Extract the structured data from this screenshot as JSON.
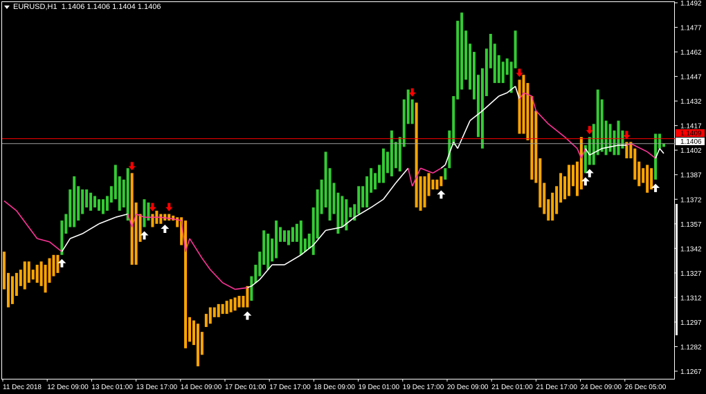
{
  "header": {
    "symbol": "EURUSD,H1",
    "ohlc": "1.1406 1.1406 1.1404 1.1406"
  },
  "colors": {
    "background": "#000000",
    "frame": "#ffffff",
    "bull_bar": "#33cc33",
    "bear_bar": "#ffa500",
    "line_up": "#ffffff",
    "line_down": "#ff3399",
    "sell_arrow": "#ff0000",
    "buy_arrow": "#ffffff",
    "bid_line": "#ff0000",
    "last_line": "#a0a0a0"
  },
  "chart_data": {
    "type": "bar",
    "symbol": "EURUSD",
    "timeframe": "H1",
    "ylim": [
      1.1262,
      1.1497
    ],
    "grid": false,
    "y_ticks": [
      "1.1492",
      "1.1477",
      "1.1462",
      "1.1447",
      "1.1432",
      "1.1417",
      "1.1402",
      "1.1387",
      "1.1372",
      "1.1357",
      "1.1342",
      "1.1327",
      "1.1312",
      "1.1297",
      "1.1282",
      "1.1267"
    ],
    "x_ticks": [
      "11 Dec 2018",
      "12 Dec 09:00",
      "13 Dec 01:00",
      "13 Dec 17:00",
      "14 Dec 09:00",
      "17 Dec 01:00",
      "17 Dec 17:00",
      "18 Dec 09:00",
      "19 Dec 01:00",
      "19 Dec 17:00",
      "20 Dec 09:00",
      "21 Dec 01:00",
      "21 Dec 17:00",
      "24 Dec 09:00",
      "26 Dec 05:00"
    ],
    "price_lines": [
      {
        "label": "1.1409",
        "value": 1.1409,
        "color": "#ff0000"
      },
      {
        "label": "1.1406",
        "value": 1.1406,
        "color": "#a0a0a0"
      }
    ],
    "bars": [
      [
        1.134,
        1.1317,
        "d"
      ],
      [
        1.1327,
        1.1306,
        "d"
      ],
      [
        1.1325,
        1.1308,
        "d"
      ],
      [
        1.1327,
        1.1313,
        "d"
      ],
      [
        1.1329,
        1.1319,
        "d"
      ],
      [
        1.1334,
        1.1317,
        "d"
      ],
      [
        1.1334,
        1.1321,
        "d"
      ],
      [
        1.1329,
        1.1323,
        "d"
      ],
      [
        1.1332,
        1.1321,
        "d"
      ],
      [
        1.1334,
        1.1319,
        "d"
      ],
      [
        1.1332,
        1.1315,
        "d"
      ],
      [
        1.1336,
        1.1321,
        "d"
      ],
      [
        1.1338,
        1.1325,
        "d"
      ],
      [
        1.1338,
        1.1327,
        "d"
      ],
      [
        1.1359,
        1.1338,
        "u"
      ],
      [
        1.1363,
        1.1351,
        "u"
      ],
      [
        1.1378,
        1.1355,
        "u"
      ],
      [
        1.1386,
        1.1355,
        "u"
      ],
      [
        1.138,
        1.1359,
        "u"
      ],
      [
        1.1378,
        1.1363,
        "u"
      ],
      [
        1.1378,
        1.1367,
        "u"
      ],
      [
        1.1376,
        1.1365,
        "u"
      ],
      [
        1.1374,
        1.1367,
        "u"
      ],
      [
        1.1372,
        1.1365,
        "u"
      ],
      [
        1.1372,
        1.1363,
        "u"
      ],
      [
        1.1374,
        1.1365,
        "u"
      ],
      [
        1.138,
        1.137,
        "u"
      ],
      [
        1.1393,
        1.1372,
        "u"
      ],
      [
        1.1386,
        1.1365,
        "u"
      ],
      [
        1.1384,
        1.1367,
        "u"
      ],
      [
        1.1391,
        1.1359,
        "u"
      ],
      [
        1.1388,
        1.1332,
        "d"
      ],
      [
        1.137,
        1.1332,
        "d"
      ],
      [
        1.1363,
        1.1346,
        "d"
      ],
      [
        1.1372,
        1.1355,
        "u"
      ],
      [
        1.137,
        1.1359,
        "u"
      ],
      [
        1.1363,
        1.1355,
        "d"
      ],
      [
        1.1365,
        1.1357,
        "d"
      ],
      [
        1.1363,
        1.1357,
        "d"
      ],
      [
        1.1363,
        1.1359,
        "d"
      ],
      [
        1.1363,
        1.1359,
        "d"
      ],
      [
        1.1362,
        1.1359,
        "d"
      ],
      [
        1.1361,
        1.1355,
        "d"
      ],
      [
        1.1361,
        1.1344,
        "d"
      ],
      [
        1.1359,
        1.1281,
        "d"
      ],
      [
        1.13,
        1.1285,
        "d"
      ],
      [
        1.1298,
        1.1283,
        "d"
      ],
      [
        1.1296,
        1.127,
        "d"
      ],
      [
        1.1291,
        1.1277,
        "d"
      ],
      [
        1.1302,
        1.1294,
        "d"
      ],
      [
        1.1306,
        1.1296,
        "d"
      ],
      [
        1.1306,
        1.13,
        "d"
      ],
      [
        1.1308,
        1.13,
        "d"
      ],
      [
        1.1308,
        1.1302,
        "d"
      ],
      [
        1.131,
        1.1302,
        "d"
      ],
      [
        1.1311,
        1.1303,
        "d"
      ],
      [
        1.1312,
        1.1304,
        "d"
      ],
      [
        1.1313,
        1.1306,
        "d"
      ],
      [
        1.1313,
        1.1306,
        "d"
      ],
      [
        1.1319,
        1.1306,
        "d"
      ],
      [
        1.1325,
        1.131,
        "u"
      ],
      [
        1.1332,
        1.1321,
        "u"
      ],
      [
        1.134,
        1.1325,
        "u"
      ],
      [
        1.1353,
        1.1332,
        "u"
      ],
      [
        1.1351,
        1.1329,
        "u"
      ],
      [
        1.1348,
        1.1334,
        "u"
      ],
      [
        1.1359,
        1.1336,
        "u"
      ],
      [
        1.1355,
        1.1346,
        "u"
      ],
      [
        1.1353,
        1.1346,
        "u"
      ],
      [
        1.1353,
        1.1344,
        "u"
      ],
      [
        1.1355,
        1.1346,
        "u"
      ],
      [
        1.1357,
        1.1346,
        "u"
      ],
      [
        1.1359,
        1.1338,
        "u"
      ],
      [
        1.1348,
        1.134,
        "u"
      ],
      [
        1.1351,
        1.1342,
        "u"
      ],
      [
        1.1367,
        1.1338,
        "u"
      ],
      [
        1.1378,
        1.1348,
        "u"
      ],
      [
        1.1384,
        1.1363,
        "u"
      ],
      [
        1.1401,
        1.1367,
        "u"
      ],
      [
        1.1391,
        1.1359,
        "u"
      ],
      [
        1.1382,
        1.1363,
        "u"
      ],
      [
        1.1376,
        1.1351,
        "u"
      ],
      [
        1.1374,
        1.1355,
        "u"
      ],
      [
        1.1372,
        1.1353,
        "u"
      ],
      [
        1.1367,
        1.1361,
        "u"
      ],
      [
        1.1369,
        1.1359,
        "u"
      ],
      [
        1.138,
        1.1363,
        "u"
      ],
      [
        1.138,
        1.1367,
        "u"
      ],
      [
        1.1386,
        1.1367,
        "u"
      ],
      [
        1.1391,
        1.1376,
        "u"
      ],
      [
        1.1388,
        1.1378,
        "u"
      ],
      [
        1.1393,
        1.1382,
        "u"
      ],
      [
        1.1403,
        1.1382,
        "u"
      ],
      [
        1.1401,
        1.1388,
        "u"
      ],
      [
        1.1414,
        1.1386,
        "u"
      ],
      [
        1.1407,
        1.1391,
        "u"
      ],
      [
        1.141,
        1.1389,
        "u"
      ],
      [
        1.1433,
        1.1404,
        "u"
      ],
      [
        1.1439,
        1.1418,
        "u"
      ],
      [
        1.1433,
        1.1418,
        "u"
      ],
      [
        1.1431,
        1.1367,
        "d"
      ],
      [
        1.1386,
        1.1365,
        "d"
      ],
      [
        1.1386,
        1.1367,
        "d"
      ],
      [
        1.1388,
        1.1374,
        "d"
      ],
      [
        1.1384,
        1.1378,
        "d"
      ],
      [
        1.1384,
        1.1378,
        "d"
      ],
      [
        1.1386,
        1.138,
        "d"
      ],
      [
        1.1391,
        1.1384,
        "u"
      ],
      [
        1.1414,
        1.1391,
        "u"
      ],
      [
        1.1435,
        1.1405,
        "u"
      ],
      [
        1.1481,
        1.1433,
        "u"
      ],
      [
        1.1486,
        1.1439,
        "u"
      ],
      [
        1.1475,
        1.1445,
        "u"
      ],
      [
        1.1467,
        1.1439,
        "u"
      ],
      [
        1.1462,
        1.1433,
        "u"
      ],
      [
        1.1448,
        1.141,
        "u"
      ],
      [
        1.1452,
        1.1403,
        "u"
      ],
      [
        1.1464,
        1.1435,
        "u"
      ],
      [
        1.1473,
        1.1452,
        "u"
      ],
      [
        1.1467,
        1.1443,
        "u"
      ],
      [
        1.146,
        1.1443,
        "u"
      ],
      [
        1.1456,
        1.1443,
        "u"
      ],
      [
        1.1458,
        1.1448,
        "u"
      ],
      [
        1.1456,
        1.1437,
        "u"
      ],
      [
        1.1475,
        1.1452,
        "u"
      ],
      [
        1.1445,
        1.1412,
        "d"
      ],
      [
        1.1448,
        1.1412,
        "d"
      ],
      [
        1.1443,
        1.1408,
        "d"
      ],
      [
        1.1435,
        1.1384,
        "d"
      ],
      [
        1.1426,
        1.1382,
        "d"
      ],
      [
        1.1397,
        1.1367,
        "d"
      ],
      [
        1.1382,
        1.1363,
        "d"
      ],
      [
        1.1372,
        1.1359,
        "d"
      ],
      [
        1.1376,
        1.1359,
        "d"
      ],
      [
        1.138,
        1.1363,
        "d"
      ],
      [
        1.1388,
        1.137,
        "d"
      ],
      [
        1.1386,
        1.1372,
        "d"
      ],
      [
        1.1393,
        1.1374,
        "d"
      ],
      [
        1.1393,
        1.138,
        "d"
      ],
      [
        1.1395,
        1.1374,
        "d"
      ],
      [
        1.141,
        1.1378,
        "d"
      ],
      [
        1.1405,
        1.1388,
        "u"
      ],
      [
        1.141,
        1.1393,
        "u"
      ],
      [
        1.1418,
        1.1393,
        "u"
      ],
      [
        1.1439,
        1.1399,
        "u"
      ],
      [
        1.1433,
        1.1401,
        "u"
      ],
      [
        1.142,
        1.1399,
        "u"
      ],
      [
        1.1418,
        1.1401,
        "u"
      ],
      [
        1.1414,
        1.1399,
        "u"
      ],
      [
        1.142,
        1.1399,
        "u"
      ],
      [
        1.1414,
        1.1403,
        "u"
      ],
      [
        1.1407,
        1.1397,
        "d"
      ],
      [
        1.1407,
        1.1397,
        "d"
      ],
      [
        1.1403,
        1.1384,
        "d"
      ],
      [
        1.1395,
        1.138,
        "d"
      ],
      [
        1.1391,
        1.1382,
        "d"
      ],
      [
        1.1393,
        1.1376,
        "d"
      ],
      [
        1.1391,
        1.1378,
        "d"
      ],
      [
        1.1412,
        1.1384,
        "u"
      ],
      [
        1.1412,
        1.1403,
        "u"
      ],
      [
        1.1406,
        1.1404,
        "u"
      ]
    ],
    "trend_line": [
      [
        0,
        1.1371,
        "d"
      ],
      [
        3,
        1.1365,
        "d"
      ],
      [
        8,
        1.1348,
        "d"
      ],
      [
        11,
        1.1346,
        "d"
      ],
      [
        14,
        1.134,
        "d"
      ],
      [
        14,
        1.134,
        "u"
      ],
      [
        16,
        1.1348,
        "u"
      ],
      [
        19,
        1.1351,
        "u"
      ],
      [
        23,
        1.1357,
        "u"
      ],
      [
        27,
        1.1361,
        "u"
      ],
      [
        30,
        1.1363,
        "u"
      ],
      [
        30,
        1.1363,
        "d"
      ],
      [
        31,
        1.1355,
        "d"
      ],
      [
        32,
        1.1363,
        "d"
      ],
      [
        34,
        1.1361,
        "d"
      ],
      [
        38,
        1.1361,
        "d"
      ],
      [
        41,
        1.136,
        "d"
      ],
      [
        43,
        1.1359,
        "d"
      ],
      [
        44,
        1.134,
        "d"
      ],
      [
        45,
        1.1348,
        "d"
      ],
      [
        48,
        1.1336,
        "d"
      ],
      [
        50,
        1.1329,
        "d"
      ],
      [
        53,
        1.1321,
        "d"
      ],
      [
        56,
        1.1317,
        "d"
      ],
      [
        59,
        1.1318,
        "d"
      ],
      [
        59,
        1.1318,
        "u"
      ],
      [
        60,
        1.1319,
        "u"
      ],
      [
        62,
        1.1323,
        "u"
      ],
      [
        65,
        1.1332,
        "u"
      ],
      [
        68,
        1.1332,
        "u"
      ],
      [
        72,
        1.1338,
        "u"
      ],
      [
        75,
        1.1344,
        "u"
      ],
      [
        78,
        1.1353,
        "u"
      ],
      [
        82,
        1.1355,
        "u"
      ],
      [
        85,
        1.1361,
        "u"
      ],
      [
        89,
        1.1367,
        "u"
      ],
      [
        92,
        1.1372,
        "u"
      ],
      [
        95,
        1.1382,
        "u"
      ],
      [
        98,
        1.1391,
        "u"
      ],
      [
        98,
        1.1391,
        "d"
      ],
      [
        99,
        1.138,
        "d"
      ],
      [
        101,
        1.1391,
        "d"
      ],
      [
        104,
        1.1388,
        "d"
      ],
      [
        106,
        1.1391,
        "d"
      ],
      [
        106,
        1.1391,
        "u"
      ],
      [
        107,
        1.1393,
        "u"
      ],
      [
        109,
        1.1407,
        "u"
      ],
      [
        110,
        1.1403,
        "u"
      ],
      [
        113,
        1.142,
        "u"
      ],
      [
        116,
        1.1426,
        "u"
      ],
      [
        120,
        1.1435,
        "u"
      ],
      [
        122,
        1.1437,
        "u"
      ],
      [
        124,
        1.1441,
        "u"
      ],
      [
        125,
        1.1433,
        "u"
      ],
      [
        125,
        1.1433,
        "d"
      ],
      [
        126,
        1.1437,
        "d"
      ],
      [
        128,
        1.1435,
        "d"
      ],
      [
        129,
        1.1426,
        "d"
      ],
      [
        132,
        1.1418,
        "d"
      ],
      [
        136,
        1.141,
        "d"
      ],
      [
        139,
        1.1403,
        "d"
      ],
      [
        140,
        1.1397,
        "d"
      ],
      [
        141,
        1.1403,
        "d"
      ],
      [
        141,
        1.1403,
        "u"
      ],
      [
        142,
        1.1399,
        "u"
      ],
      [
        145,
        1.1403,
        "u"
      ],
      [
        149,
        1.1405,
        "u"
      ],
      [
        151,
        1.1405,
        "u"
      ],
      [
        151,
        1.1405,
        "d"
      ],
      [
        152,
        1.1406,
        "d"
      ],
      [
        156,
        1.1401,
        "d"
      ],
      [
        158,
        1.1397,
        "d"
      ],
      [
        158,
        1.1397,
        "u"
      ],
      [
        159,
        1.1403,
        "u"
      ],
      [
        160,
        1.14,
        "u"
      ]
    ],
    "sell_signals": [
      31,
      36,
      40,
      99,
      125,
      142,
      151
    ],
    "buy_signals": [
      14,
      34,
      39,
      59,
      106,
      141,
      142,
      158
    ]
  }
}
